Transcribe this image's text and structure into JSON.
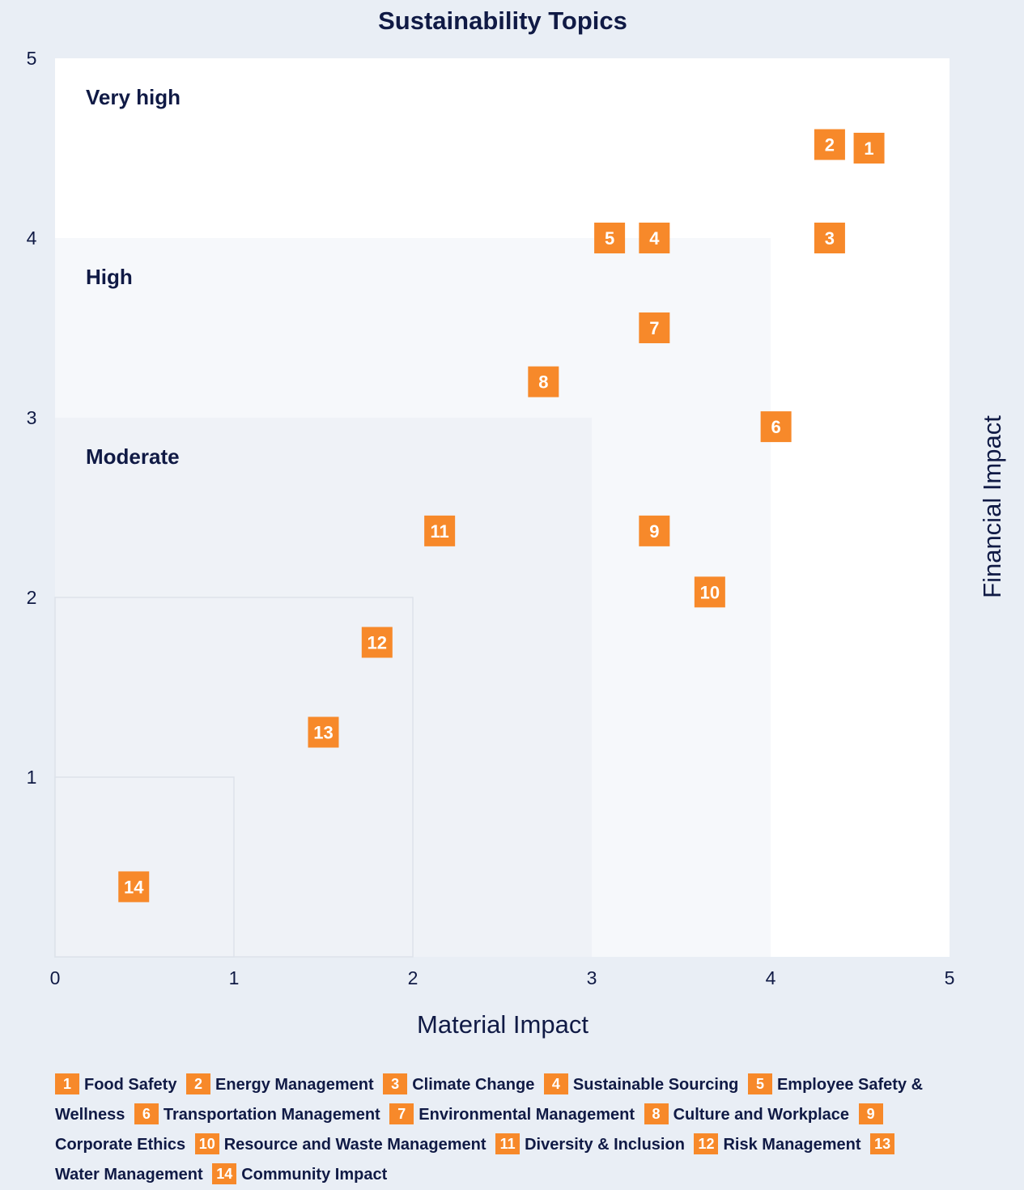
{
  "chart_data": {
    "type": "scatter",
    "title": "Sustainability Topics",
    "xlabel": "Material Impact",
    "ylabel": "Financial Impact",
    "xlim": [
      0,
      5
    ],
    "ylim": [
      0,
      5
    ],
    "x_ticks": [
      "0",
      "1",
      "2",
      "3",
      "4",
      "5"
    ],
    "y_ticks": [
      "1",
      "2",
      "3",
      "4",
      "5"
    ],
    "grid": false,
    "zones": [
      {
        "label": "Very high",
        "max": 5
      },
      {
        "label": "High",
        "max": 4
      },
      {
        "label": "Moderate",
        "max": 3
      },
      {
        "label": "",
        "max": 2
      },
      {
        "label": "",
        "max": 1
      }
    ],
    "points": [
      {
        "id": "1",
        "name": "Food Safety",
        "x": 4.55,
        "y": 4.5
      },
      {
        "id": "2",
        "name": "Energy Management",
        "x": 4.33,
        "y": 4.52
      },
      {
        "id": "3",
        "name": "Climate Change",
        "x": 4.33,
        "y": 4.0
      },
      {
        "id": "4",
        "name": "Sustainable Sourcing",
        "x": 3.35,
        "y": 4.0
      },
      {
        "id": "5",
        "name": "Employee Safety & Wellness",
        "x": 3.1,
        "y": 4.0
      },
      {
        "id": "6",
        "name": "Transportation Management",
        "x": 4.03,
        "y": 2.95
      },
      {
        "id": "7",
        "name": "Environmental Management",
        "x": 3.35,
        "y": 3.5
      },
      {
        "id": "8",
        "name": "Culture and Workplace",
        "x": 2.73,
        "y": 3.2
      },
      {
        "id": "9",
        "name": "Corporate Ethics",
        "x": 3.35,
        "y": 2.37
      },
      {
        "id": "10",
        "name": "Resource and Waste Management",
        "x": 3.66,
        "y": 2.03
      },
      {
        "id": "11",
        "name": "Diversity & Inclusion",
        "x": 2.15,
        "y": 2.37
      },
      {
        "id": "12",
        "name": "Risk Management",
        "x": 1.8,
        "y": 1.75
      },
      {
        "id": "13",
        "name": "Water Management",
        "x": 1.5,
        "y": 1.25
      },
      {
        "id": "14",
        "name": "Community Impact",
        "x": 0.44,
        "y": 0.39
      }
    ],
    "colors": {
      "marker": "#f7892a",
      "text": "#101a45",
      "background": "#e9eef5"
    },
    "legend_position": "bottom"
  }
}
